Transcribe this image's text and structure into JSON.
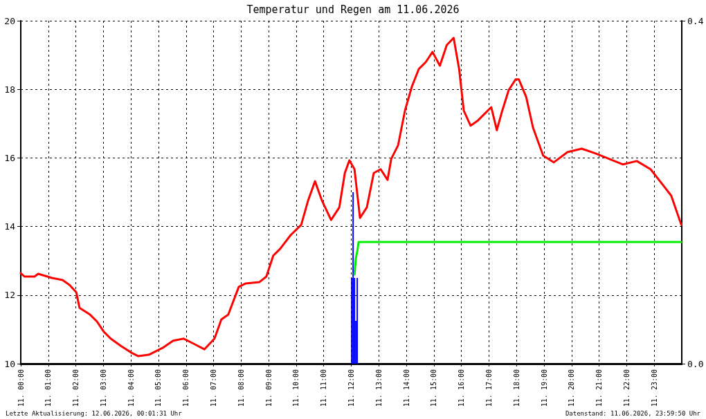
{
  "chart_data": {
    "type": "line",
    "title": "Temperatur und Regen am 11.06.2026",
    "annotations": [
      "Letzte Aktualisierung: 12.06.2026, 00:01:31 Uhr",
      "Datenstand: 11.06.2026, 23:59:50 Uhr"
    ],
    "xlim": [
      "2026-06-11T00:00",
      "2026-06-12T00:00"
    ],
    "xticks": [
      {
        "value": "2026-06-11T00:00",
        "label": "11. 00:00"
      },
      {
        "value": "2026-06-11T01:00",
        "label": "11. 01:00"
      },
      {
        "value": "2026-06-11T02:00",
        "label": "11. 02:00"
      },
      {
        "value": "2026-06-11T03:00",
        "label": "11. 03:00"
      },
      {
        "value": "2026-06-11T04:00",
        "label": "11. 04:00"
      },
      {
        "value": "2026-06-11T05:00",
        "label": "11. 05:00"
      },
      {
        "value": "2026-06-11T06:00",
        "label": "11. 06:00"
      },
      {
        "value": "2026-06-11T07:00",
        "label": "11. 07:00"
      },
      {
        "value": "2026-06-11T08:00",
        "label": "11. 08:00"
      },
      {
        "value": "2026-06-11T09:00",
        "label": "11. 09:00"
      },
      {
        "value": "2026-06-11T10:00",
        "label": "11. 10:00"
      },
      {
        "value": "2026-06-11T11:00",
        "label": "11. 11:00"
      },
      {
        "value": "2026-06-11T12:00",
        "label": "11. 12:00"
      },
      {
        "value": "2026-06-11T13:00",
        "label": "11. 13:00"
      },
      {
        "value": "2026-06-11T14:00",
        "label": "11. 14:00"
      },
      {
        "value": "2026-06-11T15:00",
        "label": "11. 15:00"
      },
      {
        "value": "2026-06-11T16:00",
        "label": "11. 16:00"
      },
      {
        "value": "2026-06-11T17:00",
        "label": "11. 17:00"
      },
      {
        "value": "2026-06-11T18:00",
        "label": "11. 18:00"
      },
      {
        "value": "2026-06-11T19:00",
        "label": "11. 19:00"
      },
      {
        "value": "2026-06-11T20:00",
        "label": "11. 20:00"
      },
      {
        "value": "2026-06-11T21:00",
        "label": "11. 21:00"
      },
      {
        "value": "2026-06-11T22:00",
        "label": "11. 22:00"
      },
      {
        "value": "2026-06-11T23:00",
        "label": "11. 23:00"
      }
    ],
    "ylim": [
      10,
      20
    ],
    "yticks": [
      10,
      12,
      14,
      16,
      18,
      20
    ],
    "y2lim": [
      0,
      0.4
    ],
    "y2ticks": [
      {
        "value": 0,
        "label": "0.0"
      },
      {
        "value": 0.4,
        "label": "0.4"
      }
    ],
    "grid": true,
    "legend": false,
    "marker": "none",
    "line_style": "solid",
    "series": [
      {
        "color": "#ff0000",
        "x": [
          "2026-06-11T00:00",
          "2026-06-11T00:08",
          "2026-06-11T00:30",
          "2026-06-11T00:38",
          "2026-06-11T01:08",
          "2026-06-11T01:31",
          "2026-06-11T01:46",
          "2026-06-11T02:01",
          "2026-06-11T02:08",
          "2026-06-11T02:31",
          "2026-06-11T02:46",
          "2026-06-11T03:01",
          "2026-06-11T03:16",
          "2026-06-11T03:38",
          "2026-06-11T04:01",
          "2026-06-11T04:16",
          "2026-06-11T04:39",
          "2026-06-11T05:09",
          "2026-06-11T05:32",
          "2026-06-11T05:55",
          "2026-06-11T06:17",
          "2026-06-11T06:40",
          "2026-06-11T07:02",
          "2026-06-11T07:17",
          "2026-06-11T07:32",
          "2026-06-11T07:55",
          "2026-06-11T08:10",
          "2026-06-11T08:40",
          "2026-06-11T08:55",
          "2026-06-11T09:10",
          "2026-06-11T09:25",
          "2026-06-11T09:48",
          "2026-06-11T10:11",
          "2026-06-11T10:26",
          "2026-06-11T10:41",
          "2026-06-11T10:56",
          "2026-06-11T11:16",
          "2026-06-11T11:34",
          "2026-06-11T11:46",
          "2026-06-11T11:56",
          "2026-06-11T12:07",
          "2026-06-11T12:19",
          "2026-06-11T12:34",
          "2026-06-11T12:49",
          "2026-06-11T13:04",
          "2026-06-11T13:19",
          "2026-06-11T13:27",
          "2026-06-11T13:42",
          "2026-06-11T13:57",
          "2026-06-11T14:12",
          "2026-06-11T14:27",
          "2026-06-11T14:42",
          "2026-06-11T14:57",
          "2026-06-11T15:13",
          "2026-06-11T15:28",
          "2026-06-11T15:43",
          "2026-06-11T15:55",
          "2026-06-11T16:05",
          "2026-06-11T16:20",
          "2026-06-11T16:35",
          "2026-06-11T16:50",
          "2026-06-11T17:05",
          "2026-06-11T17:17",
          "2026-06-11T17:29",
          "2026-06-11T17:43",
          "2026-06-11T17:58",
          "2026-06-11T18:05",
          "2026-06-11T18:21",
          "2026-06-11T18:36",
          "2026-06-11T18:58",
          "2026-06-11T19:21",
          "2026-06-11T19:51",
          "2026-06-11T20:22",
          "2026-06-11T20:52",
          "2026-06-11T21:22",
          "2026-06-11T21:52",
          "2026-06-11T22:22",
          "2026-06-11T22:52",
          "2026-06-11T23:22",
          "2026-06-11T23:37",
          "2026-06-11T23:59"
        ],
        "values": [
          12.64,
          12.54,
          12.54,
          12.62,
          12.5,
          12.44,
          12.3,
          12.08,
          11.63,
          11.43,
          11.23,
          10.93,
          10.73,
          10.52,
          10.32,
          10.22,
          10.26,
          10.46,
          10.67,
          10.73,
          10.58,
          10.42,
          10.73,
          11.29,
          11.43,
          12.24,
          12.34,
          12.38,
          12.54,
          13.15,
          13.35,
          13.75,
          14.05,
          14.76,
          15.32,
          14.76,
          14.19,
          14.56,
          15.56,
          15.93,
          15.67,
          14.25,
          14.56,
          15.56,
          15.67,
          15.36,
          15.97,
          16.37,
          17.38,
          18.08,
          18.59,
          18.79,
          19.09,
          18.69,
          19.29,
          19.5,
          18.59,
          17.38,
          16.94,
          17.08,
          17.28,
          17.48,
          16.81,
          17.38,
          17.98,
          18.29,
          18.29,
          17.78,
          16.88,
          16.07,
          15.87,
          16.17,
          16.27,
          16.13,
          15.97,
          15.81,
          15.91,
          15.67,
          15.16,
          14.9,
          14.05
        ]
      },
      {
        "type": "bar",
        "axis": "y2",
        "color": "#0000ff",
        "x": [
          "2026-06-11T12:01",
          "2026-06-11T12:04",
          "2026-06-11T12:07",
          "2026-06-11T12:10",
          "2026-06-11T12:13"
        ],
        "values": [
          0.1,
          0.2,
          0.1,
          0.05,
          0.1
        ]
      },
      {
        "type": "line",
        "axis": "y2",
        "color": "#00ee00",
        "x": [
          "2026-06-11T12:07",
          "2026-06-11T12:10",
          "2026-06-11T12:13",
          "2026-06-11T12:16",
          "2026-06-11T23:59"
        ],
        "values": [
          0.104,
          0.123,
          0.131,
          0.142,
          0.142
        ]
      }
    ]
  }
}
